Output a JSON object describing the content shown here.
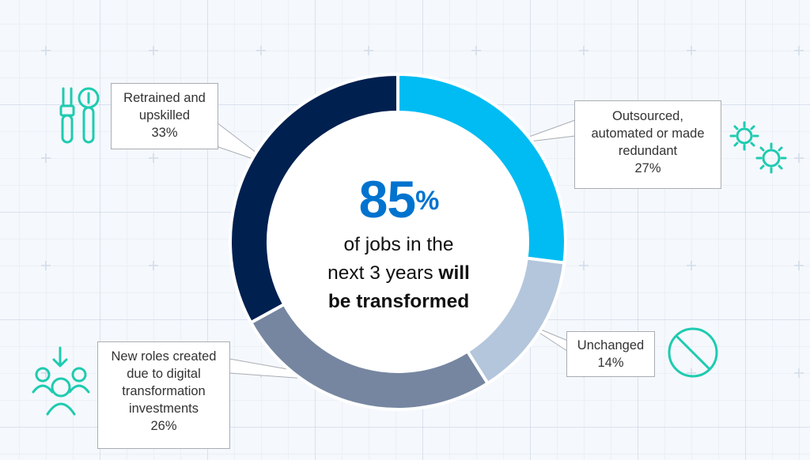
{
  "chart_data": {
    "type": "pie",
    "style": "donut",
    "categories": [
      "Outsourced, automated or made redundant",
      "Unchanged",
      "New roles created due to digital transformation investments",
      "Retrained and upskilled"
    ],
    "values": [
      27,
      14,
      26,
      33
    ],
    "value_labels": [
      "27%",
      "14%",
      "26%",
      "33%"
    ],
    "colors": [
      "#00bcf2",
      "#b4c6dc",
      "#7686a1",
      "#002050"
    ]
  },
  "headline": {
    "number": "85",
    "symbol": "%",
    "line1": "of jobs in the",
    "line2_plain": "next 3 years ",
    "line2_bold": "will",
    "line3_bold": "be transformed"
  },
  "callouts": {
    "retrained": {
      "lines": [
        "Retrained and",
        "upskilled"
      ],
      "pct": "33%"
    },
    "outsourced": {
      "lines": [
        "Outsourced,",
        "automated or made",
        "redundant"
      ],
      "pct": "27%"
    },
    "unchanged": {
      "lines": [
        "Unchanged"
      ],
      "pct": "14%"
    },
    "newroles": {
      "lines": [
        "New roles created",
        "due to digital",
        "transformation",
        "investments"
      ],
      "pct": "26%"
    }
  },
  "icons": [
    "tools-icon",
    "gears-icon",
    "prohibited-icon",
    "people-icon"
  ],
  "accent_color": "#1ecbb0"
}
